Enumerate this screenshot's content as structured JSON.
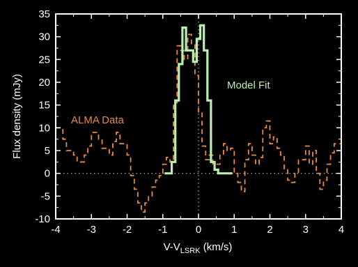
{
  "colors": {
    "background": "#000000",
    "axes": "#ffffff",
    "data_series": "#e98a3c",
    "fit_series": "#b8f0b0",
    "reference_lines": "#bbbbbb"
  },
  "chart_data": {
    "type": "line",
    "title": "",
    "xlabel_main": "V-V",
    "xlabel_sub": "LSRK",
    "xlabel_unit": " (km/s)",
    "ylabel": "Flux density (mJy)",
    "xlim": [
      -4,
      4
    ],
    "ylim": [
      -10,
      35
    ],
    "xticks": [
      "-4",
      "-3",
      "-2",
      "-1",
      "0",
      "1",
      "2",
      "3",
      "4"
    ],
    "yticks": [
      "-10",
      "-5",
      "0",
      "5",
      "10",
      "15",
      "20",
      "25",
      "30",
      "35"
    ],
    "grid": false,
    "reference_lines": {
      "x": 0,
      "y": 0
    },
    "series": [
      {
        "name": "ALMA Data",
        "style": "dashed-step",
        "x": [
          -3.95,
          -3.85,
          -3.75,
          -3.65,
          -3.55,
          -3.45,
          -3.35,
          -3.25,
          -3.15,
          -3.05,
          -2.95,
          -2.85,
          -2.75,
          -2.65,
          -2.55,
          -2.45,
          -2.35,
          -2.25,
          -2.15,
          -2.05,
          -1.95,
          -1.85,
          -1.75,
          -1.65,
          -1.55,
          -1.45,
          -1.35,
          -1.25,
          -1.15,
          -1.05,
          -0.95,
          -0.85,
          -0.75,
          -0.65,
          -0.55,
          -0.45,
          -0.35,
          -0.25,
          -0.15,
          -0.05,
          0.05,
          0.15,
          0.25,
          0.35,
          0.45,
          0.55,
          0.65,
          0.75,
          0.85,
          0.95,
          1.05,
          1.15,
          1.25,
          1.35,
          1.45,
          1.55,
          1.65,
          1.75,
          1.85,
          1.95,
          2.05,
          2.15,
          2.25,
          2.35,
          2.45,
          2.55,
          2.65,
          2.75,
          2.85,
          2.95,
          3.05,
          3.15,
          3.25,
          3.35,
          3.45,
          3.55,
          3.65,
          3.75,
          3.85,
          3.95
        ],
        "y": [
          10,
          10,
          7.5,
          5,
          5,
          4,
          2.5,
          2.5,
          4,
          6,
          9,
          9,
          7.5,
          5.5,
          5.5,
          4,
          7,
          9,
          6.5,
          6.5,
          4,
          -0.5,
          -3.5,
          -6.5,
          -8.5,
          -6.5,
          -5,
          -3,
          -1.5,
          -0.5,
          2,
          3.5,
          2.5,
          15.5,
          28,
          27,
          25,
          30.5,
          28.5,
          21.5,
          13.5,
          6,
          3,
          4,
          2,
          2,
          4,
          6.5,
          5,
          5.5,
          0,
          -2,
          -4,
          3,
          6.5,
          4,
          2,
          3.5,
          10,
          11.5,
          6.5,
          8,
          5.5,
          4,
          1,
          -1.5,
          -2,
          0,
          3,
          3,
          6,
          2,
          5,
          0,
          -3.5,
          -1.5,
          2,
          4.5,
          6.5,
          6.5
        ]
      },
      {
        "name": "Model Fit",
        "style": "solid-step",
        "x": [
          -0.9,
          -0.8,
          -0.7,
          -0.6,
          -0.5,
          -0.4,
          -0.3,
          -0.2,
          -0.1,
          0.0,
          0.1,
          0.2,
          0.3,
          0.4,
          0.5,
          0.6,
          0.7,
          0.8,
          0.9
        ],
        "y": [
          0,
          0,
          2.5,
          16,
          24,
          32,
          27,
          27,
          24.5,
          29.5,
          32.5,
          27,
          16,
          2.5,
          0.8,
          0,
          0,
          0,
          0
        ]
      }
    ],
    "annotations": [
      {
        "text": "ALMA Data",
        "series": 0
      },
      {
        "text": "Model Fit",
        "series": 1
      }
    ]
  }
}
